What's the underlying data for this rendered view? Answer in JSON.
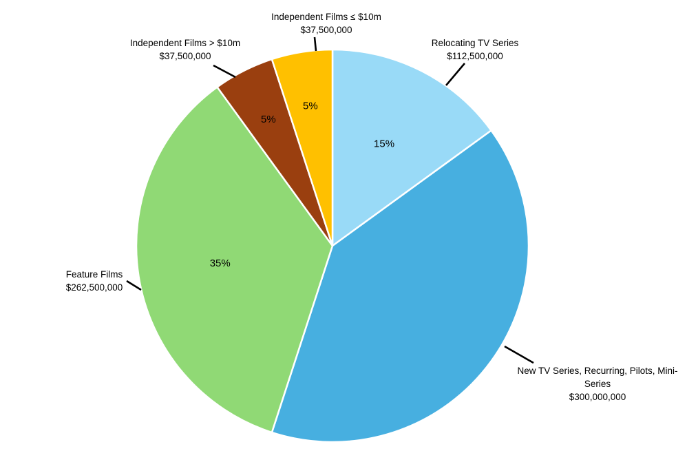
{
  "chart_data": {
    "type": "pie",
    "title": "",
    "start_angle_deg": 0,
    "direction": "clockwise",
    "slices": [
      {
        "name": "Relocating TV Series",
        "value": 112500000,
        "value_label": "$112,500,000",
        "percent_label": "15%",
        "color": "#99DAF7"
      },
      {
        "name_lines": [
          "New TV Series, Recurring, Pilots, Mini-",
          "Series"
        ],
        "value": 300000000,
        "value_label": "$300,000,000",
        "percent_label": "",
        "color": "#47AFE0"
      },
      {
        "name": "Feature Films",
        "value": 262500000,
        "value_label": "$262,500,000",
        "percent_label": "35%",
        "color": "#90D975"
      },
      {
        "name": "Independent Films > $10m",
        "value": 37500000,
        "value_label": "$37,500,000",
        "percent_label": "5%",
        "color": "#9A3F0F"
      },
      {
        "name": "Independent Films ≤ $10m",
        "value": 37500000,
        "value_label": "$37,500,000",
        "percent_label": "5%",
        "color": "#FFC000"
      }
    ]
  }
}
